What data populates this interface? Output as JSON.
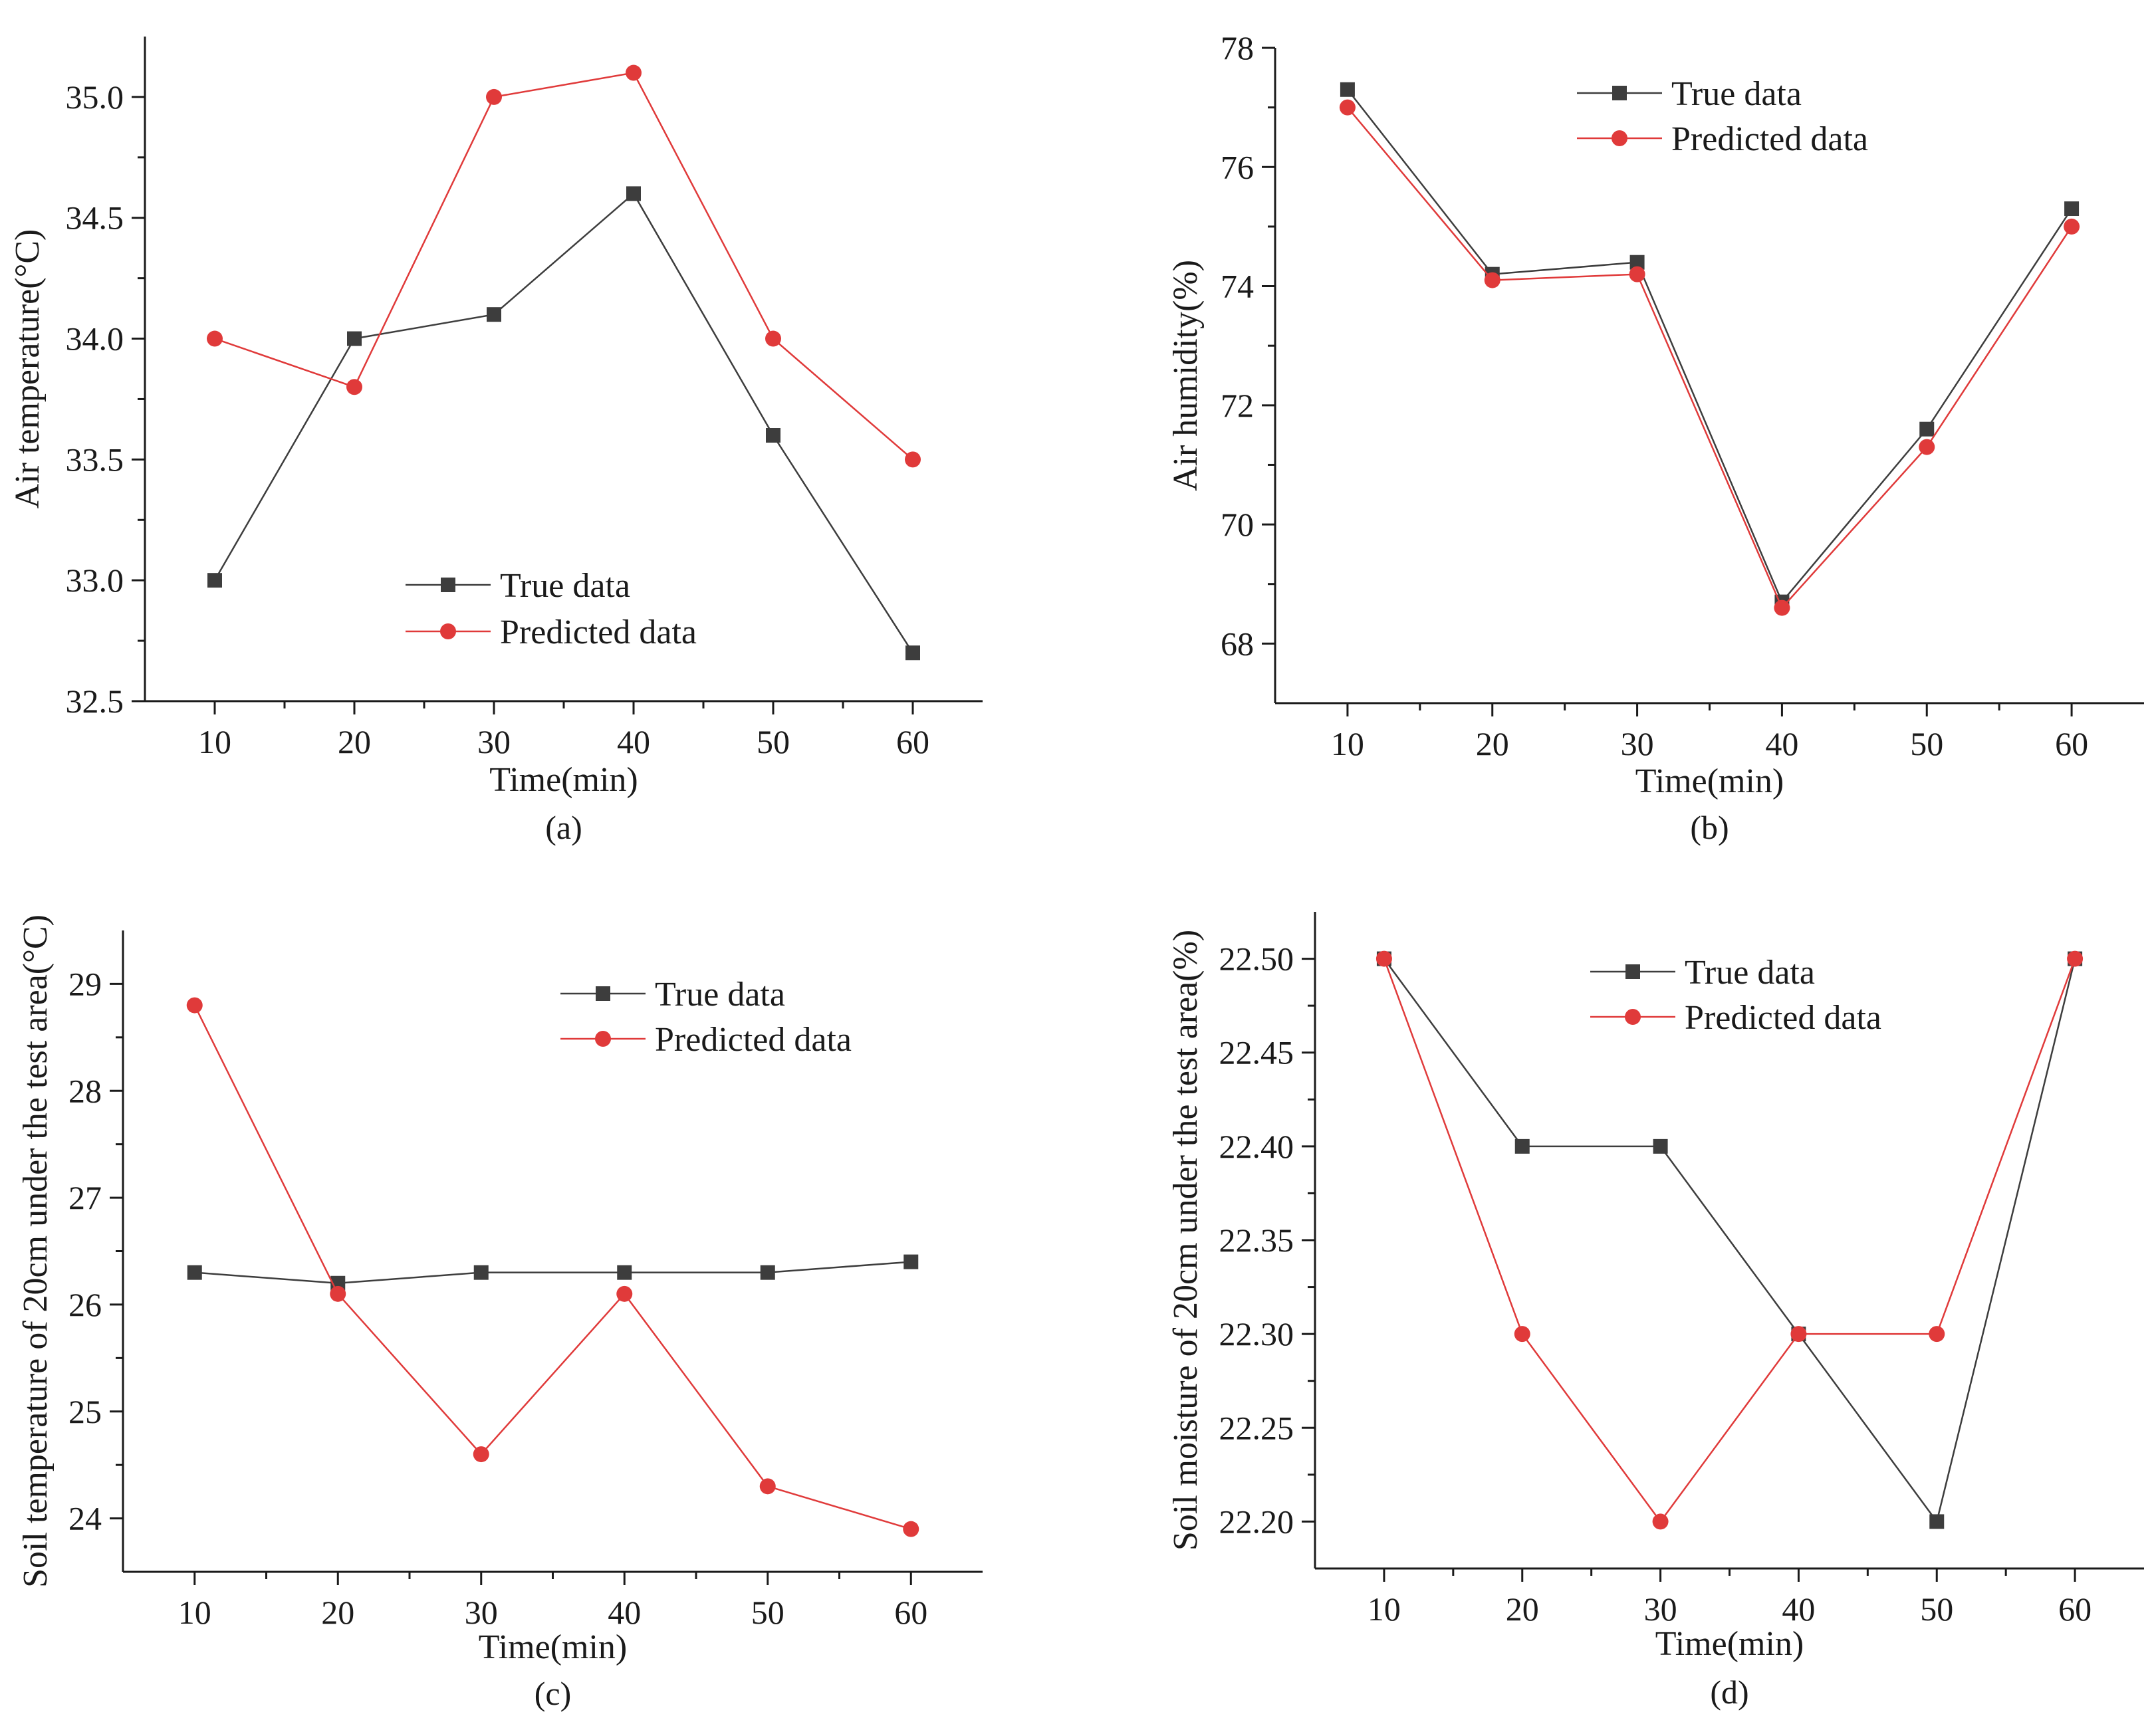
{
  "chart_data": [
    {
      "panel": "(a)",
      "type": "line",
      "x": [
        10,
        20,
        30,
        40,
        50,
        60
      ],
      "xlabel": "Time(min)",
      "ylabel": "Air temperature(°C)",
      "xlim": [
        5,
        65
      ],
      "ylim": [
        32.5,
        35.25
      ],
      "xticks": [
        10,
        20,
        30,
        40,
        50,
        60
      ],
      "yticks": [
        32.5,
        33.0,
        33.5,
        34.0,
        34.5,
        35.0
      ],
      "ytick_decimals": 1,
      "legend_position": "bottom-center",
      "series": [
        {
          "name": "True data",
          "values": [
            33.0,
            34.0,
            34.1,
            34.6,
            33.6,
            32.7
          ],
          "color": "#3d3d3d",
          "marker": "square"
        },
        {
          "name": "Predicted data",
          "values": [
            34.0,
            33.8,
            35.0,
            35.1,
            34.0,
            33.5
          ],
          "color": "#e03a3a",
          "marker": "circle"
        }
      ]
    },
    {
      "panel": "(b)",
      "type": "line",
      "x": [
        10,
        20,
        30,
        40,
        50,
        60
      ],
      "xlabel": "Time(min)",
      "ylabel": "Air humidity(%)",
      "xlim": [
        5,
        65
      ],
      "ylim": [
        67,
        78
      ],
      "xticks": [
        10,
        20,
        30,
        40,
        50,
        60
      ],
      "yticks": [
        68,
        70,
        72,
        74,
        76,
        78
      ],
      "ytick_decimals": 0,
      "legend_position": "top-center",
      "series": [
        {
          "name": "True data",
          "values": [
            77.3,
            74.2,
            74.4,
            68.7,
            71.6,
            75.3
          ],
          "color": "#3d3d3d",
          "marker": "square"
        },
        {
          "name": "Predicted data",
          "values": [
            77.0,
            74.1,
            74.2,
            68.6,
            71.3,
            75.0
          ],
          "color": "#e03a3a",
          "marker": "circle"
        }
      ]
    },
    {
      "panel": "(c)",
      "type": "line",
      "x": [
        10,
        20,
        30,
        40,
        50,
        60
      ],
      "xlabel": "Time(min)",
      "ylabel": "Soil temperature of 20cm under the test area(°C)",
      "xlim": [
        5,
        65
      ],
      "ylim": [
        23.5,
        29.5
      ],
      "xticks": [
        10,
        20,
        30,
        40,
        50,
        60
      ],
      "yticks": [
        24,
        25,
        26,
        27,
        28,
        29
      ],
      "ytick_decimals": 0,
      "legend_position": "top-right",
      "series": [
        {
          "name": "True data",
          "values": [
            26.3,
            26.2,
            26.3,
            26.3,
            26.3,
            26.4
          ],
          "color": "#3d3d3d",
          "marker": "square"
        },
        {
          "name": "Predicted data",
          "values": [
            28.8,
            26.1,
            24.6,
            26.1,
            24.3,
            23.9
          ],
          "color": "#e03a3a",
          "marker": "circle"
        }
      ]
    },
    {
      "panel": "(d)",
      "type": "line",
      "x": [
        10,
        20,
        30,
        40,
        50,
        60
      ],
      "xlabel": "Time(min)",
      "ylabel": "Soil moisture of 20cm under the test area(%)",
      "xlim": [
        5,
        65
      ],
      "ylim": [
        22.175,
        22.525
      ],
      "xticks": [
        10,
        20,
        30,
        40,
        50,
        60
      ],
      "yticks": [
        22.2,
        22.25,
        22.3,
        22.35,
        22.4,
        22.45,
        22.5
      ],
      "ytick_decimals": 2,
      "legend_position": "top-center",
      "series": [
        {
          "name": "True data",
          "values": [
            22.5,
            22.4,
            22.4,
            22.3,
            22.2,
            22.5
          ],
          "color": "#3d3d3d",
          "marker": "square"
        },
        {
          "name": "Predicted data",
          "values": [
            22.5,
            22.3,
            22.2,
            22.3,
            22.3,
            22.5
          ],
          "color": "#e03a3a",
          "marker": "circle"
        }
      ]
    }
  ]
}
